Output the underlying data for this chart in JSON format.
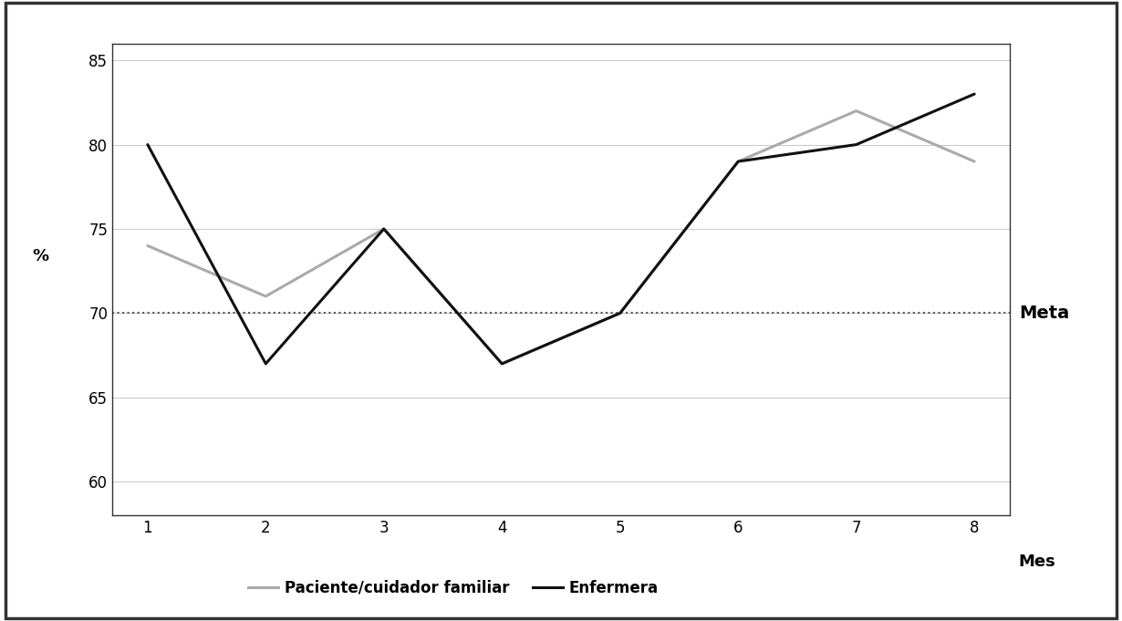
{
  "x": [
    1,
    2,
    3,
    4,
    5,
    6,
    7,
    8
  ],
  "paciente": [
    74,
    71,
    75,
    67,
    70,
    79,
    82,
    79
  ],
  "enfermera": [
    80,
    67,
    75,
    67,
    70,
    79,
    80,
    83
  ],
  "meta_value": 70,
  "paciente_label": "Paciente/cuidador familiar",
  "enfermera_label": "Enfermera",
  "xlabel": "Mes",
  "ylabel": "%",
  "meta_label": "Meta",
  "xlim": [
    0.7,
    8.3
  ],
  "ylim": [
    58,
    86
  ],
  "yticks": [
    60,
    65,
    70,
    75,
    80,
    85
  ],
  "xticks": [
    1,
    2,
    3,
    4,
    5,
    6,
    7,
    8
  ],
  "paciente_color": "#aaaaaa",
  "enfermera_color": "#111111",
  "meta_color": "#555555",
  "background_color": "#ffffff",
  "border_color": "#333333",
  "line_width": 2.2,
  "meta_linewidth": 1.5,
  "legend_fontsize": 12,
  "axis_label_fontsize": 13,
  "tick_fontsize": 12,
  "meta_fontsize": 14,
  "grid_color": "#cccccc"
}
